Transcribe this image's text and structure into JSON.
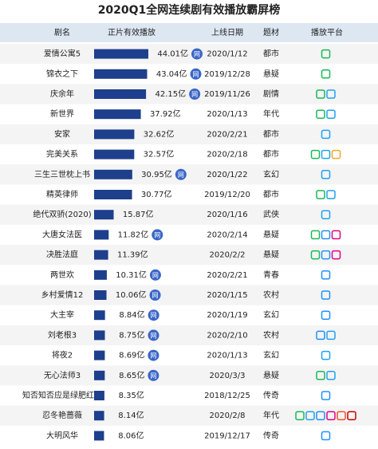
{
  "chart_data": {
    "type": "bar",
    "title": "2020Q1全网连续剧有效播放霸屏榜",
    "columns": [
      "剧名",
      "正片有效播放",
      "上线日期",
      "题材",
      "播放平台"
    ],
    "color": "#1d3f8c",
    "categories": [
      "爱情公寓5",
      "锦衣之下",
      "庆余年",
      "新世界",
      "安家",
      "完美关系",
      "三生三世枕上书",
      "精英律师",
      "绝代双骄(2020)",
      "大唐女法医",
      "决胜法庭",
      "两世欢",
      "乡村爱情12",
      "大主宰",
      "刘老根3",
      "将夜2",
      "无心法师3",
      "知否知否应是绿肥红瘦",
      "忍冬艳蔷薇",
      "大明风华"
    ],
    "values": [
      44.01,
      43.04,
      42.15,
      37.92,
      32.62,
      32.57,
      30.95,
      30.77,
      15.87,
      11.82,
      11.39,
      10.31,
      10.06,
      8.84,
      8.75,
      8.69,
      8.65,
      8.35,
      8.14,
      8.06
    ],
    "value_labels": [
      "44.01亿",
      "43.04亿",
      "42.15亿",
      "37.92亿",
      "32.62亿",
      "32.57亿",
      "30.95亿",
      "30.77亿",
      "15.87亿",
      "11.82亿",
      "11.39亿",
      "10.31亿",
      "10.06亿",
      "8.84亿",
      "8.75亿",
      "8.69亿",
      "8.65亿",
      "8.35亿",
      "8.14亿",
      "8.06亿"
    ],
    "badges": [
      "网",
      "网",
      "网",
      null,
      null,
      null,
      "网",
      null,
      null,
      "网",
      null,
      "网",
      "网",
      "网",
      "网",
      "网",
      "网",
      null,
      null,
      null
    ],
    "dates": [
      "2020/1/12",
      "2019/12/28",
      "2019/11/26",
      "2020/1/13",
      "2020/2/21",
      "2020/2/18",
      "2020/1/22",
      "2019/12/20",
      "2020/1/16",
      "2020/2/14",
      "2020/2/2",
      "2020/2/21",
      "2020/1/15",
      "2020/1/19",
      "2020/2/10",
      "2020/1/13",
      "2020/3/3",
      "2018/12/25",
      "2020/2/8",
      "2019/12/17"
    ],
    "genres": [
      "都市",
      "悬疑",
      "剧情",
      "年代",
      "都市",
      "都市",
      "玄幻",
      "都市",
      "武侠",
      "悬疑",
      "悬疑",
      "青春",
      "农村",
      "玄幻",
      "农村",
      "玄幻",
      "悬疑",
      "传奇",
      "年代",
      "传奇"
    ]
  }
}
